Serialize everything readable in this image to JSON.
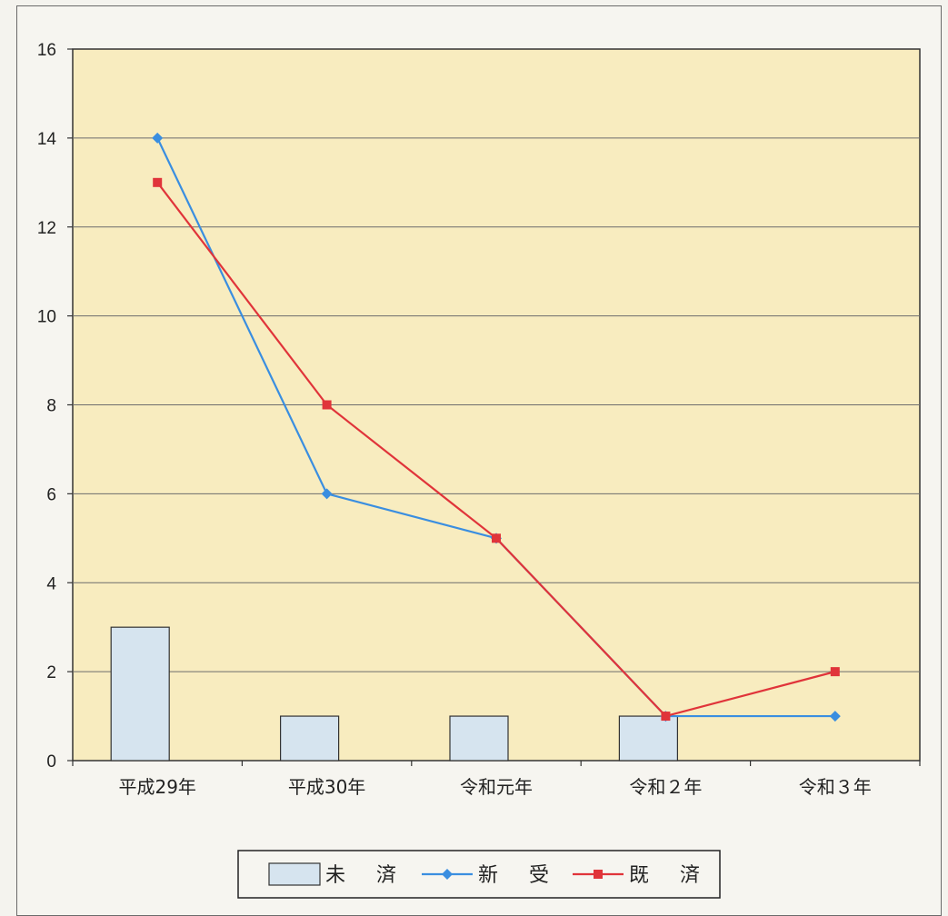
{
  "chart_data": {
    "type": "bar+line",
    "categories": [
      "平成29年",
      "平成30年",
      "令和元年",
      "令和２年",
      "令和３年"
    ],
    "ylim": [
      0,
      16
    ],
    "yticks": [
      0,
      2,
      4,
      6,
      8,
      10,
      12,
      14,
      16
    ],
    "grid": true,
    "legend_position": "bottom",
    "plot_background": "#f8ecbf",
    "series": [
      {
        "name": "未　済",
        "kind": "bar",
        "color": "#d6e4ef",
        "values": [
          3,
          1,
          1,
          1,
          0
        ]
      },
      {
        "name": "新　受",
        "kind": "line",
        "color": "#3a8ee0",
        "marker": "diamond",
        "values": [
          14,
          6,
          5,
          1,
          1
        ]
      },
      {
        "name": "既　済",
        "kind": "line",
        "color": "#e0343a",
        "marker": "square",
        "values": [
          13,
          8,
          5,
          1,
          2
        ]
      }
    ]
  }
}
